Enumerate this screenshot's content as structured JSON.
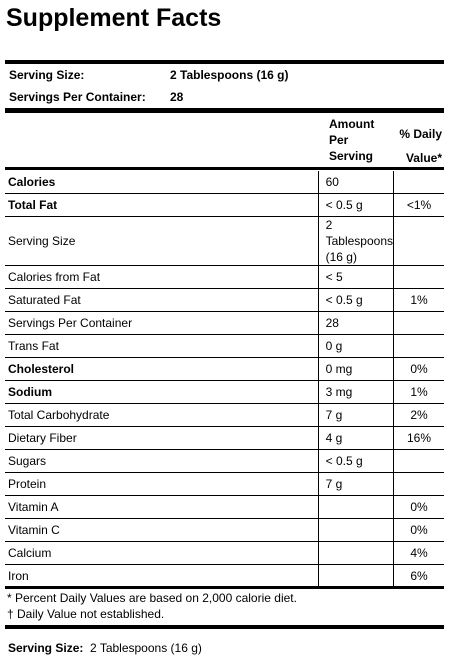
{
  "title": "Supplement Facts",
  "serving": {
    "size_label": "Serving Size:",
    "size_value": "2 Tablespoons (16 g)",
    "per_container_label": "Servings Per Container:",
    "per_container_value": "28"
  },
  "header": {
    "amount": "Amount Per Serving",
    "daily_value": "% Daily Value*"
  },
  "rows": [
    {
      "label": "Calories",
      "amount": "60",
      "bold": true
    },
    {
      "label": "Total Fat",
      "amount": "< 0.5 g",
      "dv": "<1%",
      "bold": true
    },
    {
      "label": "Serving Size",
      "amount": "2 Tablespoons (16 g)"
    },
    {
      "label": "Calories from Fat",
      "amount": "< 5"
    },
    {
      "label": "Saturated Fat",
      "amount": "< 0.5 g",
      "dv": "1%"
    },
    {
      "label": "Servings Per Container",
      "amount": "28"
    },
    {
      "label": "Trans Fat",
      "amount": "0 g"
    },
    {
      "label": "Cholesterol",
      "amount": "0 mg",
      "dv": "0%",
      "bold": true
    },
    {
      "label": "Sodium",
      "amount": "3 mg",
      "dv": "1%",
      "bold": true
    },
    {
      "label": "Total Carbohydrate",
      "amount": "7 g",
      "dv": "2%"
    },
    {
      "label": "Dietary Fiber",
      "amount": "4 g",
      "dv": "16%"
    },
    {
      "label": "Sugars",
      "amount": "< 0.5 g"
    },
    {
      "label": "Protein",
      "amount": "7 g"
    },
    {
      "label": "Vitamin A",
      "dv": "0%"
    },
    {
      "label": "Vitamin C",
      "dv": "0%"
    },
    {
      "label": "Calcium",
      "dv": "4%"
    },
    {
      "label": "Iron",
      "dv": "6%"
    }
  ],
  "footnotes": [
    "* Percent Daily Values are based on 2,000 calorie diet.",
    "† Daily Value not established."
  ],
  "footer": {
    "label": "Serving Size:",
    "value": "2 Tablespoons (16 g)"
  }
}
